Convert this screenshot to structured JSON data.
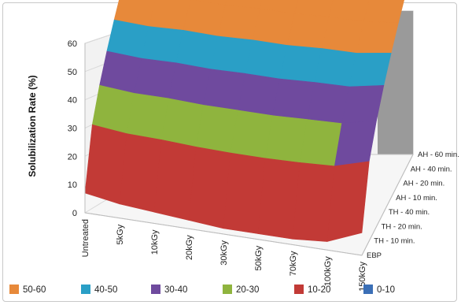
{
  "chart_data": {
    "type": "surface",
    "ylabel": "Solubilization Rate (%)",
    "xlabel": "",
    "ylim": [
      0,
      60
    ],
    "y_ticks": [
      0,
      10,
      20,
      30,
      40,
      50,
      60
    ],
    "categories": [
      "Untreated",
      "5kGy",
      "10kGy",
      "20kGy",
      "30kGy",
      "50kGy",
      "70kGy",
      "100kGy",
      "150kGy"
    ],
    "series_labels": [
      "EBP",
      "TH - 10 min.",
      "TH - 20 min.",
      "TH - 40 min.",
      "AH - 10 min.",
      "AH - 20 min.",
      "AH - 40 min.",
      "AH - 60 min."
    ],
    "values_front_ebp": [
      7,
      5,
      4,
      3,
      2,
      2,
      2,
      3,
      8
    ],
    "values_back_ah60": [
      60,
      60,
      61,
      61,
      62,
      62,
      63,
      63,
      64
    ],
    "bands": [
      {
        "name": "50-60",
        "color": "#e7893a"
      },
      {
        "name": "40-50",
        "color": "#2a9fc6"
      },
      {
        "name": "30-40",
        "color": "#6f4a9e"
      },
      {
        "name": "20-30",
        "color": "#8fb43e"
      },
      {
        "name": "10-20",
        "color": "#c23a36"
      },
      {
        "name": "0-10",
        "color": "#3b6fb6"
      }
    ],
    "legend_position": "bottom",
    "grid": true
  }
}
